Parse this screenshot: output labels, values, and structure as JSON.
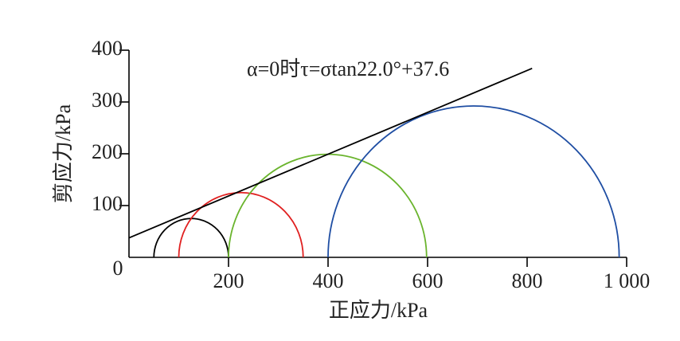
{
  "chart_data": {
    "type": "mohr",
    "annotation": "α=0时τ=σtan22.0°+37.6",
    "xlabel": "正应力/kPa",
    "ylabel": "剪应力/kPa",
    "xlim": [
      0,
      1000
    ],
    "ylim": [
      0,
      400
    ],
    "xticks": [
      200,
      400,
      600,
      800,
      {
        "value": 1000,
        "label": "1 000"
      }
    ],
    "yticks": [
      0,
      100,
      200,
      300,
      400
    ],
    "circles": [
      {
        "sigma3": 50,
        "sigma1": 200,
        "color": "#000000"
      },
      {
        "sigma3": 100,
        "sigma1": 350,
        "color": "#e02020"
      },
      {
        "sigma3": 200,
        "sigma1": 598,
        "color": "#6ab42d"
      },
      {
        "sigma3": 400,
        "sigma1": 985,
        "color": "#1f4ea3"
      }
    ],
    "fit_line": {
      "intercept": 37.6,
      "angle_deg": 22.0,
      "x_end": 810,
      "color": "#000000"
    }
  }
}
